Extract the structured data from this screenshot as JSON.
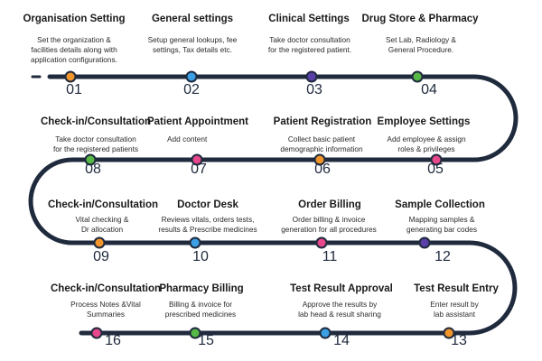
{
  "steps": [
    {
      "number": "01",
      "title": "Organisation Setting",
      "lines": [
        "Set the organization &",
        "facilities details along with",
        "application configurations."
      ],
      "color": "#f2962b"
    },
    {
      "number": "02",
      "title": "General settings",
      "lines": [
        "Setup general lookups, fee",
        "settings, Tax details etc."
      ],
      "color": "#3ba0e6"
    },
    {
      "number": "03",
      "title": "Clinical Settings",
      "lines": [
        "Take doctor consultation",
        "for the registered patient."
      ],
      "color": "#5b3fa8"
    },
    {
      "number": "04",
      "title": "Drug Store & Pharmacy",
      "lines": [
        "Set Lab, Radiology &",
        "General Procedure."
      ],
      "color": "#57b846"
    },
    {
      "number": "05",
      "title": "Employee Settings",
      "lines": [
        "Add employee & assign",
        "roles & privileges"
      ],
      "color": "#e8478b"
    },
    {
      "number": "06",
      "title": "Patient Registration",
      "lines": [
        "Collect basic patient",
        "demographic information"
      ],
      "color": "#f2962b"
    },
    {
      "number": "07",
      "title": "Patient Appointment",
      "lines": [
        "Add content"
      ],
      "color": "#e8478b"
    },
    {
      "number": "08",
      "title": "Check-in/Consultation",
      "lines": [
        "Take doctor consultation",
        "for the registered patients"
      ],
      "color": "#57b846"
    },
    {
      "number": "09",
      "title": "Check-in/Consultation",
      "lines": [
        "Vital checking &",
        "Dr allocation"
      ],
      "color": "#f2962b"
    },
    {
      "number": "10",
      "title": "Doctor Desk",
      "lines": [
        "Reviews vitals, orders tests,",
        "results & Prescribe medicines"
      ],
      "color": "#3ba0e6"
    },
    {
      "number": "11",
      "title": "Order Billing",
      "lines": [
        "Order billing & invoice",
        "generation for all procedures"
      ],
      "color": "#e8478b"
    },
    {
      "number": "12",
      "title": "Sample Collection",
      "lines": [
        "Mapping samples &",
        "generating bar codes"
      ],
      "color": "#5b3fa8"
    },
    {
      "number": "13",
      "title": "Test Result Entry",
      "lines": [
        "Enter result by",
        "lab assistant"
      ],
      "color": "#f2962b"
    },
    {
      "number": "14",
      "title": "Test Result Approval",
      "lines": [
        "Approve the results by",
        "lab head & result sharing"
      ],
      "color": "#3ba0e6"
    },
    {
      "number": "15",
      "title": "Pharmacy Billing",
      "lines": [
        "Billing & invoice for",
        "prescribed medicines"
      ],
      "color": "#57b846"
    },
    {
      "number": "16",
      "title": "Check-in/Consultation",
      "lines": [
        "Process Notes &Vital",
        "Summaries"
      ],
      "color": "#e8478b"
    }
  ]
}
